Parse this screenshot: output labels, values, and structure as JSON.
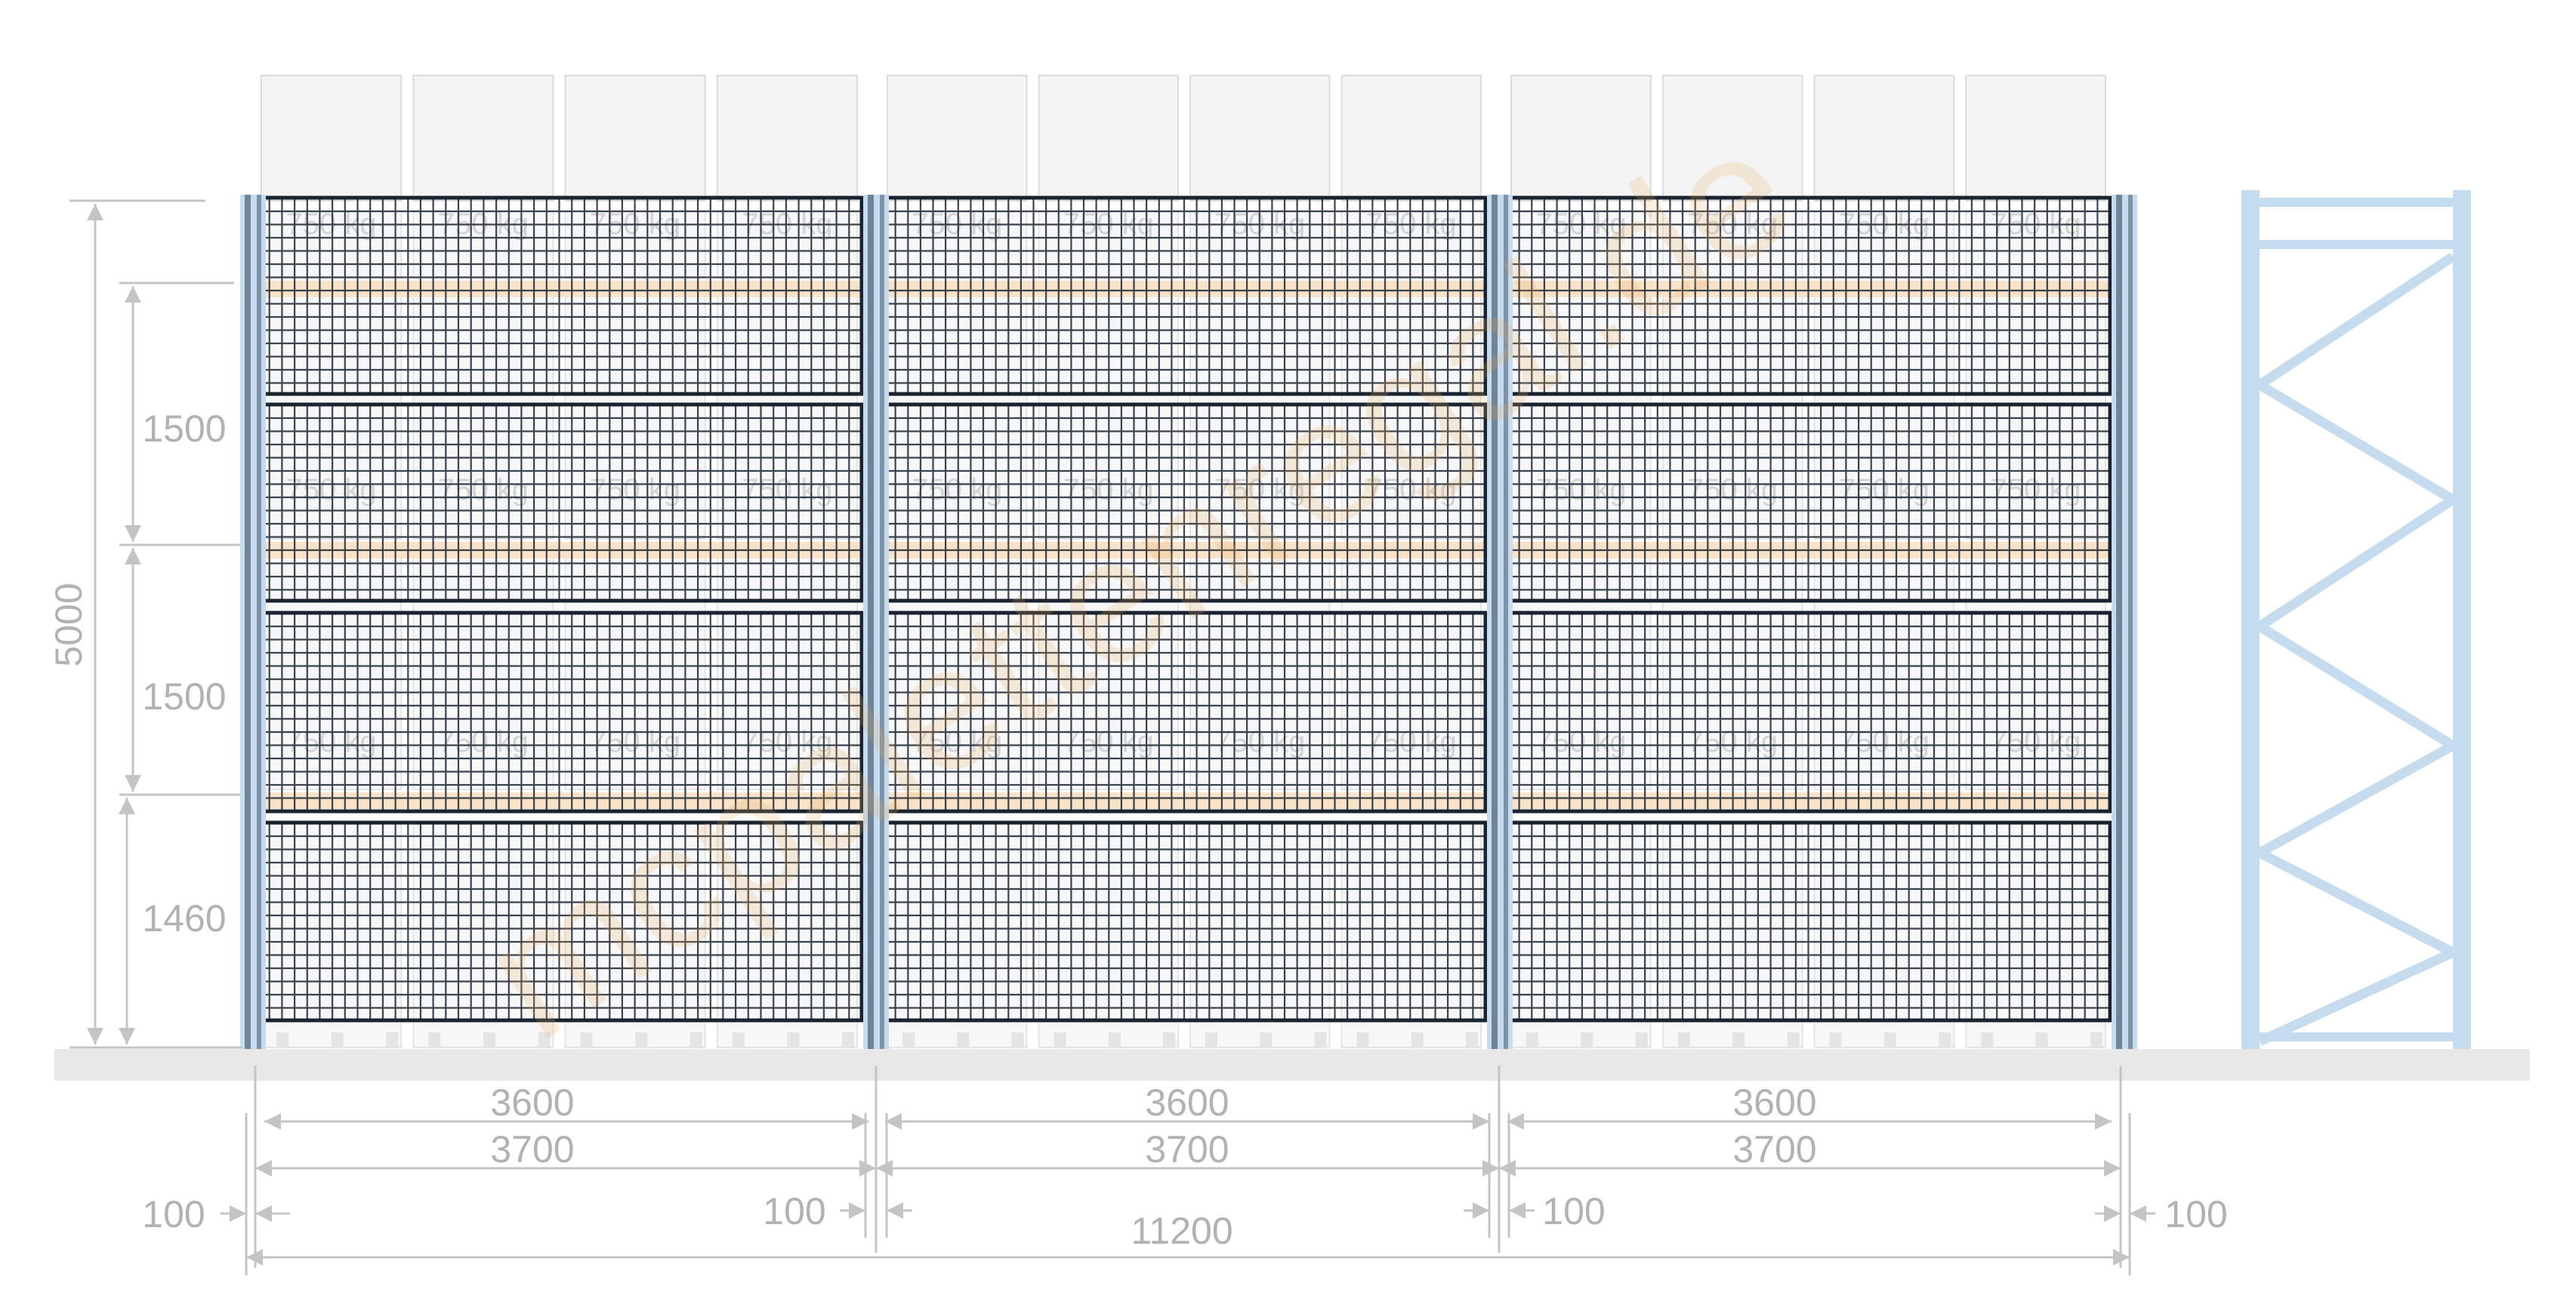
{
  "colors": {
    "upright": "#c5dcef",
    "beam": "#f8e3c8",
    "mesh": "#1a2330",
    "pallet": "#f4f4f4",
    "pallet_border": "#dcdcdc",
    "floor": "#e8e8e8",
    "dim_line": "#c4c4c4",
    "dim_text": "#b2b2b2",
    "watermark": "#e8ac5c"
  },
  "watermark": {
    "text": "mcpalettenregal.de"
  },
  "load_labels": [
    "750 kg",
    "750 kg",
    "750 kg",
    "750 kg",
    "750 kg",
    "750 kg",
    "750 kg",
    "750 kg",
    "750 kg",
    "750 kg",
    "750 kg",
    "750 kg"
  ],
  "dimensions": {
    "total_height": "5000",
    "levels": [
      "1500",
      "1500",
      "1460"
    ],
    "bays": [
      {
        "clear": "3600",
        "pitch": "3700"
      },
      {
        "clear": "3600",
        "pitch": "3700"
      },
      {
        "clear": "3600",
        "pitch": "3700"
      }
    ],
    "gaps": [
      "100",
      "100",
      "100",
      "100"
    ],
    "total_length": "11200"
  }
}
